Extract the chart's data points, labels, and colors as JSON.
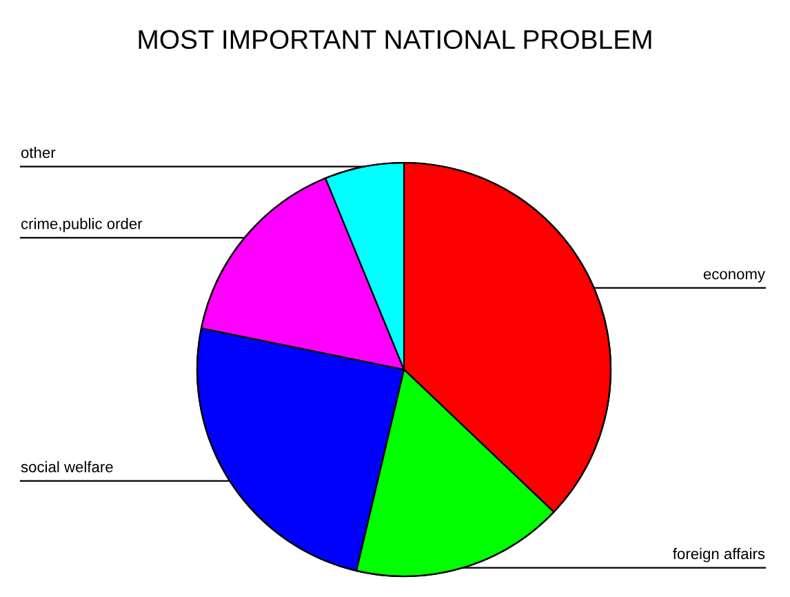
{
  "chart_data": {
    "type": "pie",
    "title": "MOST IMPORTANT NATIONAL PROBLEM",
    "categories": [
      "economy",
      "foreign affairs",
      "social welfare",
      "crime,public order",
      "other"
    ],
    "values": [
      37.1,
      16.6,
      24.5,
      15.6,
      6.2
    ],
    "colors": [
      "#ff0000",
      "#00ff00",
      "#0000ff",
      "#ff00ff",
      "#00ffff"
    ]
  }
}
